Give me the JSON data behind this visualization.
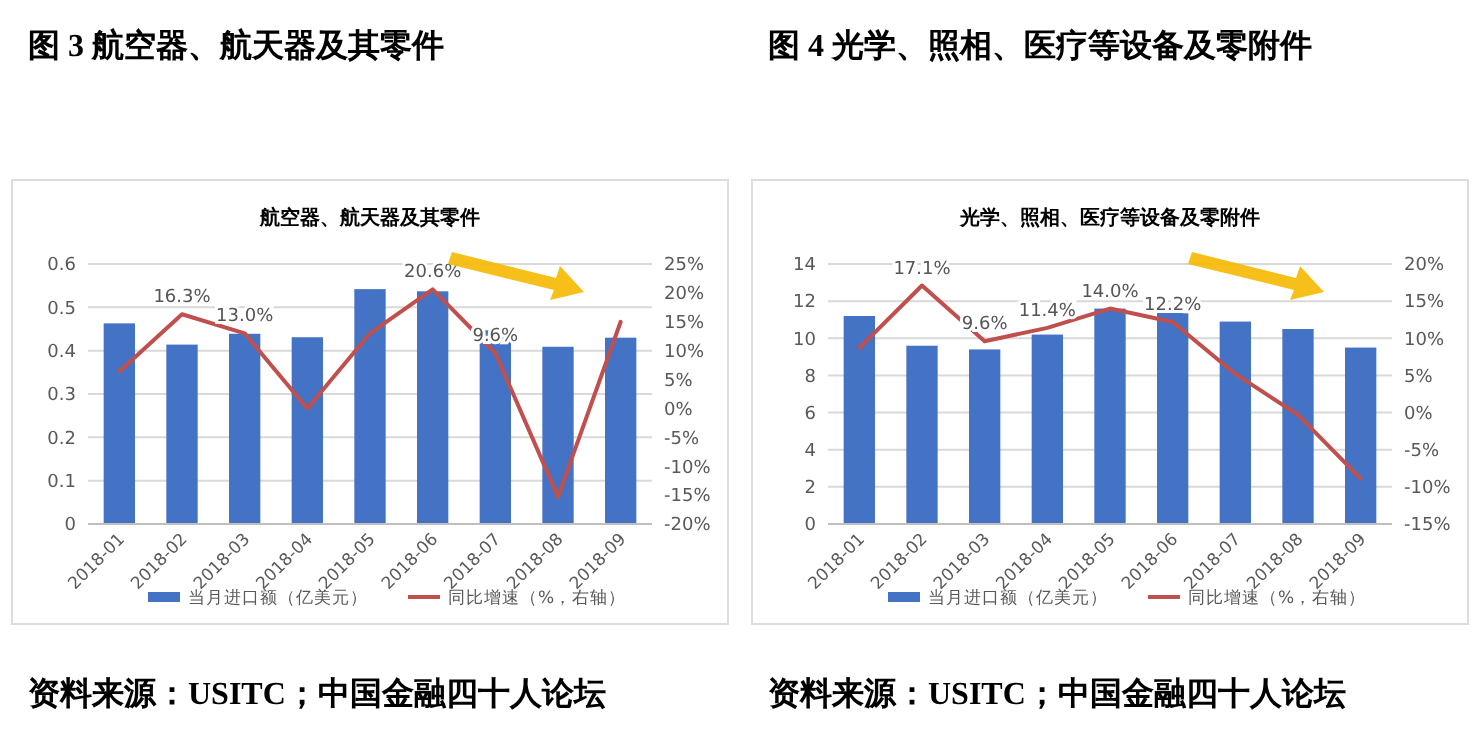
{
  "chart_data": [
    {
      "type": "bar",
      "title": "图 3 航空器、航天器及其零件",
      "subtitle": "航空器、航天器及其零件",
      "categories": [
        "2018-01",
        "2018-02",
        "2018-03",
        "2018-04",
        "2018-05",
        "2018-06",
        "2018-07",
        "2018-08",
        "2018-09"
      ],
      "series": [
        {
          "name": "当月进口额（亿美元）",
          "color": "#4472c4",
          "values": [
            0.463,
            0.414,
            0.439,
            0.431,
            0.542,
            0.537,
            0.447,
            0.409,
            0.43
          ]
        },
        {
          "type": "line",
          "axis": "y2",
          "name": "同比增速（%，右轴）",
          "color": "#c0504d",
          "values": [
            6.4,
            16.3,
            13.0,
            0,
            13,
            20.6,
            9.6,
            -15.3,
            15
          ],
          "value_labels": [
            null,
            "16.3%",
            "13.0%",
            null,
            null,
            "20.6%",
            "9.6%",
            null,
            null
          ]
        }
      ],
      "ylim": [
        0,
        0.6
      ],
      "yticks": [
        0,
        0.1,
        0.2,
        0.3,
        0.4,
        0.5,
        0.6
      ],
      "y2lim": [
        -20,
        25
      ],
      "y2ticks": [
        {
          "value": -20,
          "label": "-20%"
        },
        {
          "value": -15,
          "label": "-15%"
        },
        {
          "value": -10,
          "label": "-10%"
        },
        {
          "value": -5,
          "label": "-5%"
        },
        {
          "value": 0,
          "label": "0%"
        },
        {
          "value": 5,
          "label": "5%"
        },
        {
          "value": 10,
          "label": "10%"
        },
        {
          "value": 15,
          "label": "15%"
        },
        {
          "value": 20,
          "label": "20%"
        },
        {
          "value": 25,
          "label": "25%"
        }
      ],
      "grid": "y",
      "legend": "bottom",
      "marker": "none",
      "annotations": [
        "资料来源：USITC；中国金融四十人论坛"
      ]
    },
    {
      "type": "bar",
      "title": "图 4 光学、照相、医疗等设备及零附件",
      "subtitle": "光学、照相、医疗等设备及零附件",
      "categories": [
        "2018-01",
        "2018-02",
        "2018-03",
        "2018-04",
        "2018-05",
        "2018-06",
        "2018-07",
        "2018-08",
        "2018-09"
      ],
      "series": [
        {
          "name": "当月进口额（亿美元）",
          "color": "#4472c4",
          "values": [
            11.2,
            9.6,
            9.4,
            10.2,
            11.6,
            11.5,
            10.9,
            10.5,
            9.5
          ]
        },
        {
          "type": "line",
          "axis": "y2",
          "name": "同比增速（%，右轴）",
          "color": "#c0504d",
          "values": [
            8.7,
            17.1,
            9.6,
            11.4,
            14.0,
            12.2,
            5.2,
            -0.3,
            -8.9
          ],
          "value_labels": [
            null,
            "17.1%",
            "9.6%",
            "11.4%",
            "14.0%",
            "12.2%",
            null,
            null,
            null
          ]
        }
      ],
      "ylim": [
        0,
        14
      ],
      "yticks": [
        0,
        2,
        4,
        6,
        8,
        10,
        12,
        14
      ],
      "y2lim": [
        -15,
        20
      ],
      "y2ticks": [
        {
          "value": -15,
          "label": "-15%"
        },
        {
          "value": -10,
          "label": "-10%"
        },
        {
          "value": -5,
          "label": "-5%"
        },
        {
          "value": 0,
          "label": "0%"
        },
        {
          "value": 5,
          "label": "5%"
        },
        {
          "value": 10,
          "label": "10%"
        },
        {
          "value": 15,
          "label": "15%"
        },
        {
          "value": 20,
          "label": "20%"
        }
      ],
      "grid": "y",
      "legend": "bottom",
      "marker": "none",
      "annotations": [
        "资料来源：USITC；中国金融四十人论坛"
      ]
    }
  ]
}
